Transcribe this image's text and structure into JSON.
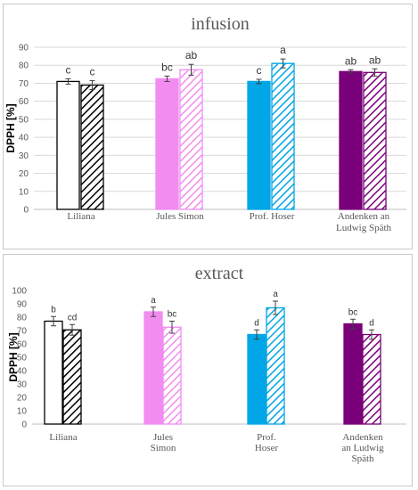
{
  "chart_data": [
    {
      "type": "bar",
      "title": "infusion",
      "ylabel": "DPPH [%]",
      "ylim": [
        0,
        90
      ],
      "yticks": [
        0,
        10,
        20,
        30,
        40,
        50,
        60,
        70,
        80,
        90
      ],
      "grid": true,
      "categories": [
        [
          "Liliana"
        ],
        [
          "Jules Simon"
        ],
        [
          "Prof. Hoser"
        ],
        [
          "Andenken an",
          "Ludwig Späth"
        ]
      ],
      "colors": [
        "#ffffff",
        "#f28cf0",
        "#00a6e6",
        "#7a007a"
      ],
      "edge_colors": [
        "#000000",
        "#f28cf0",
        "#00a6e6",
        "#7a007a"
      ],
      "series": [
        {
          "values": [
            71,
            72.5,
            71,
            76.5
          ],
          "errors": [
            1.5,
            1.5,
            1.2,
            1.0
          ],
          "letters": [
            "c",
            "bc",
            "c",
            "ab"
          ],
          "pattern": "solid"
        },
        {
          "values": [
            69,
            77.5,
            81,
            76
          ],
          "errors": [
            2.5,
            3.0,
            2.5,
            2.0
          ],
          "letters": [
            "c",
            "ab",
            "a",
            "ab"
          ],
          "pattern": "hatched"
        }
      ]
    },
    {
      "type": "bar",
      "title": "extract",
      "ylabel": "DPPH [%]",
      "ylim": [
        0,
        100
      ],
      "yticks": [
        0,
        10,
        20,
        30,
        40,
        50,
        60,
        70,
        80,
        90,
        100
      ],
      "grid": false,
      "categories": [
        [
          "Liliana"
        ],
        [
          "Jules",
          "Simon"
        ],
        [
          "Prof.",
          "Hoser"
        ],
        [
          "Andenken",
          "an Ludwig",
          "Späth"
        ]
      ],
      "colors": [
        "#ffffff",
        "#f28cf0",
        "#00a6e6",
        "#7a007a"
      ],
      "edge_colors": [
        "#000000",
        "#f28cf0",
        "#00a6e6",
        "#7a007a"
      ],
      "series": [
        {
          "values": [
            77,
            84,
            67,
            75
          ],
          "errors": [
            3.5,
            3.5,
            3.5,
            3.5
          ],
          "letters": [
            "b",
            "a",
            "d",
            "bc"
          ],
          "pattern": "solid"
        },
        {
          "values": [
            70.5,
            72.5,
            87,
            67
          ],
          "errors": [
            4.0,
            4.5,
            5.0,
            3.5
          ],
          "letters": [
            "cd",
            "bc",
            "a",
            "d"
          ],
          "pattern": "hatched"
        }
      ]
    }
  ]
}
